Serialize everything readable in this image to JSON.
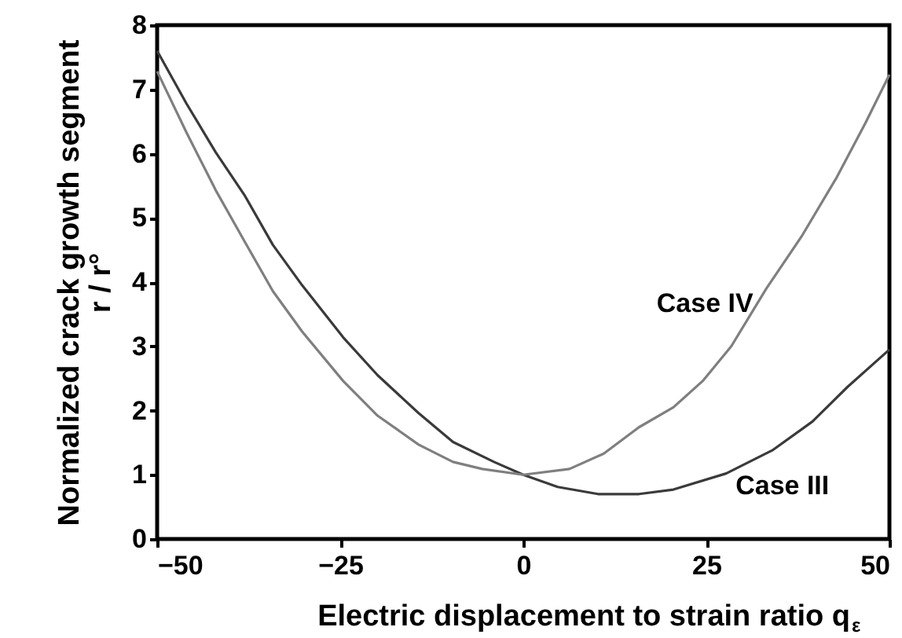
{
  "chart_data": {
    "type": "line",
    "xlabel": "Electric displacement to strain ratio q$_{ε}$",
    "ylabel": "Normalized crack growth segment\nr / r°",
    "xlim": [
      -50,
      50
    ],
    "xticks": [
      -50,
      -25,
      0,
      25,
      50
    ],
    "ylim": [
      0,
      8
    ],
    "yticks": [
      0,
      1,
      2,
      3,
      4,
      5,
      6,
      7,
      8
    ],
    "grid": false,
    "line_style": "solid",
    "series": [
      {
        "name": "Case III",
        "color": "#3a3a3a",
        "x": [
          -50,
          -46,
          -42,
          -38,
          -34.2,
          -30.2,
          -24.6,
          -19.9,
          -14.3,
          -9.6,
          -4,
          0,
          4.7,
          10.2,
          15.8,
          20.5,
          27.7,
          34,
          39.5,
          44.3,
          50
        ],
        "values": [
          7.6,
          6.78,
          6.02,
          5.34,
          4.58,
          3.95,
          3.14,
          2.55,
          1.96,
          1.51,
          1.2,
          1.0,
          0.81,
          0.7,
          0.7,
          0.77,
          1.02,
          1.38,
          1.83,
          2.37,
          2.95
        ]
      },
      {
        "name": "Case IV",
        "color": "#7f7f7f",
        "x": [
          -50,
          -46,
          -42,
          -38,
          -34.2,
          -30.2,
          -24.6,
          -19.9,
          -14.3,
          -9.6,
          -5.6,
          0,
          6.3,
          11,
          15.8,
          20.5,
          24.5,
          28.4,
          33.2,
          38,
          42.7,
          46.7,
          50
        ],
        "values": [
          7.28,
          6.33,
          5.43,
          4.62,
          3.86,
          3.23,
          2.46,
          1.92,
          1.47,
          1.2,
          1.09,
          1.0,
          1.09,
          1.33,
          1.74,
          2.05,
          2.46,
          3.0,
          3.9,
          4.71,
          5.61,
          6.47,
          7.23
        ]
      }
    ]
  }
}
